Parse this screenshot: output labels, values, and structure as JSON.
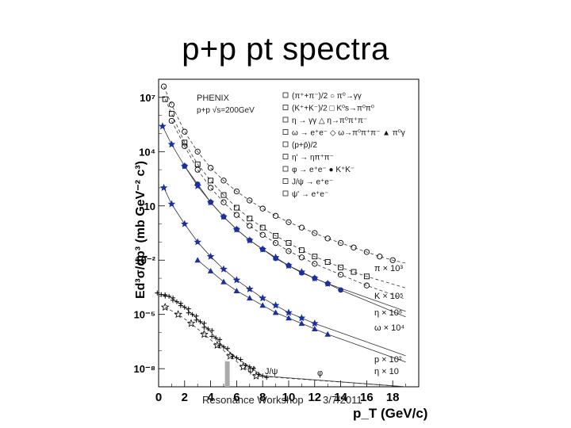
{
  "slide": {
    "title": "p+p pt spectra",
    "footer_event": "Resonance Workshop",
    "footer_date": "3/7/2011"
  },
  "chart_data": {
    "type": "scatter",
    "title": "",
    "xlabel": "p_T (GeV/c)",
    "ylabel": "Ed³σ/dp³ (mb GeV⁻² c³)",
    "xlim": [
      0,
      20
    ],
    "ylim_log10": [
      -9,
      8
    ],
    "yscale": "log",
    "x_ticks": [
      0,
      2,
      4,
      6,
      8,
      10,
      12,
      14,
      16,
      18
    ],
    "y_ticks": [
      {
        "label": "10⁷",
        "log": 7
      },
      {
        "label": "10⁴",
        "log": 4
      },
      {
        "label": "10",
        "log": 1
      },
      {
        "label": "10⁻²",
        "log": -2
      },
      {
        "label": "10⁻⁵",
        "log": -5
      },
      {
        "label": "10⁻⁸",
        "log": -8
      }
    ],
    "experiment": "PHENIX",
    "system": "p+p √s=200GeV",
    "legend": [
      "(π⁺+π⁻)/2   ○ π⁰→γγ",
      "(K⁺+K⁻)/2   □ K⁰s→π⁰π⁰",
      "η → γγ   △ η→π⁰π⁺π⁻",
      "ω → e⁺e⁻   ◇ ω→π⁰π⁺π⁻   ▲ π⁰γ",
      "(p+p̄)/2",
      "η' → ηπ⁺π⁻",
      "φ → e⁺e⁻   ● K⁺K⁻",
      "J/ψ → e⁺e⁻",
      "ψ' → e⁺e⁻"
    ],
    "scale_labels": [
      "π × 10³",
      "K × 10⁵",
      "η × 10⁶",
      "ω × 10⁴",
      "p × 10²",
      "η × 10"
    ],
    "resonance_labels": [
      "ψ'",
      "J/ψ",
      "φ"
    ],
    "series": [
      {
        "name": "π × 10³",
        "marker": "open-circle",
        "points": [
          [
            0.4,
            7.6
          ],
          [
            1,
            6.6
          ],
          [
            2,
            5.1
          ],
          [
            3,
            4.0
          ],
          [
            4,
            3.1
          ],
          [
            5,
            2.4
          ],
          [
            6,
            1.8
          ],
          [
            7,
            1.3
          ],
          [
            8,
            0.85
          ],
          [
            9,
            0.45
          ],
          [
            10,
            0.1
          ],
          [
            11,
            -0.2
          ],
          [
            12,
            -0.5
          ],
          [
            13,
            -0.8
          ],
          [
            14,
            -1.05
          ],
          [
            15,
            -1.3
          ],
          [
            16,
            -1.55
          ],
          [
            17,
            -1.8
          ],
          [
            18,
            -2.0
          ]
        ]
      },
      {
        "name": "K × 10⁵",
        "marker": "open-square",
        "points": [
          [
            0.5,
            6.9
          ],
          [
            1,
            6.1
          ],
          [
            2,
            4.5
          ],
          [
            3,
            3.3
          ],
          [
            4,
            2.4
          ],
          [
            5,
            1.6
          ],
          [
            6,
            0.9
          ],
          [
            7,
            0.3
          ],
          [
            8,
            -0.2
          ],
          [
            9,
            -0.65
          ],
          [
            10,
            -1.05
          ],
          [
            11,
            -1.45
          ],
          [
            12,
            -1.8
          ],
          [
            13,
            -2.1
          ],
          [
            14,
            -2.4
          ],
          [
            15,
            -2.65
          ],
          [
            16,
            -2.9
          ]
        ]
      },
      {
        "name": "η × 10⁶",
        "marker": "open-circle",
        "points": [
          [
            1,
            5.7
          ],
          [
            2,
            4.3
          ],
          [
            3,
            3.0
          ],
          [
            4,
            2.0
          ],
          [
            5,
            1.2
          ],
          [
            6,
            0.5
          ],
          [
            7,
            -0.1
          ],
          [
            8,
            -0.6
          ],
          [
            9,
            -1.05
          ],
          [
            10,
            -1.5
          ],
          [
            11,
            -1.85
          ],
          [
            12,
            -2.2
          ],
          [
            14,
            -2.8
          ],
          [
            16,
            -3.4
          ]
        ]
      },
      {
        "name": "ω × 10⁴",
        "marker": "filled-star",
        "points": [
          [
            0.3,
            5.4
          ],
          [
            1,
            4.4
          ],
          [
            2,
            3.2
          ],
          [
            3,
            2.1
          ],
          [
            4,
            1.2
          ],
          [
            5,
            0.4
          ],
          [
            6,
            -0.3
          ],
          [
            7,
            -0.9
          ],
          [
            8,
            -1.4
          ],
          [
            9,
            -1.85
          ],
          [
            10,
            -2.3
          ],
          [
            11,
            -2.65
          ],
          [
            12,
            -3.0
          ],
          [
            13,
            -3.3
          ]
        ]
      },
      {
        "name": "K⁺K⁻ (φ)",
        "marker": "filled-circle",
        "points": [
          [
            2,
            3.2
          ],
          [
            3,
            2.2
          ],
          [
            4,
            1.2
          ],
          [
            5,
            0.4
          ],
          [
            6,
            -0.3
          ],
          [
            7,
            -0.9
          ],
          [
            8,
            -1.4
          ],
          [
            9,
            -1.9
          ],
          [
            10,
            -2.3
          ],
          [
            11,
            -2.7
          ],
          [
            12,
            -3.0
          ],
          [
            13,
            -3.3
          ],
          [
            14,
            -3.65
          ]
        ]
      },
      {
        "name": "p × 10²",
        "marker": "filled-star",
        "points": [
          [
            0.4,
            2.0
          ],
          [
            1,
            1.1
          ],
          [
            2,
            0.0
          ],
          [
            3,
            -1.0
          ],
          [
            4,
            -1.8
          ],
          [
            5,
            -2.5
          ],
          [
            6,
            -3.1
          ],
          [
            7,
            -3.6
          ],
          [
            8,
            -4.1
          ],
          [
            9,
            -4.5
          ],
          [
            10,
            -4.9
          ],
          [
            11,
            -5.2
          ],
          [
            12,
            -5.5
          ]
        ]
      },
      {
        "name": "π⁰γ (η)",
        "marker": "filled-triangle",
        "points": [
          [
            3,
            -2.0
          ],
          [
            4,
            -2.6
          ],
          [
            5,
            -3.2
          ],
          [
            6,
            -3.7
          ],
          [
            7,
            -4.1
          ],
          [
            8,
            -4.5
          ],
          [
            9,
            -4.9
          ],
          [
            10,
            -5.2
          ],
          [
            11,
            -5.5
          ],
          [
            12,
            -5.8
          ],
          [
            13,
            -6.1
          ]
        ]
      },
      {
        "name": "η × 10",
        "marker": "filled-star-dense",
        "points": [
          [
            0.2,
            -3.9
          ],
          [
            0.8,
            -4.0
          ],
          [
            1.4,
            -4.3
          ],
          [
            2,
            -4.6
          ],
          [
            2.6,
            -5.0
          ],
          [
            3.2,
            -5.4
          ],
          [
            3.8,
            -5.8
          ],
          [
            4.4,
            -6.3
          ],
          [
            5,
            -6.8
          ],
          [
            6,
            -7.4
          ],
          [
            7,
            -7.9
          ],
          [
            8,
            -8.4
          ]
        ]
      },
      {
        "name": "J/ψ",
        "marker": "open-star",
        "points": [
          [
            0.5,
            -4.6
          ],
          [
            1.5,
            -5.0
          ],
          [
            2.5,
            -5.5
          ],
          [
            3.5,
            -6.1
          ],
          [
            4.5,
            -6.7
          ],
          [
            5.5,
            -7.3
          ],
          [
            6.5,
            -7.9
          ],
          [
            7.5,
            -8.4
          ]
        ]
      }
    ]
  }
}
